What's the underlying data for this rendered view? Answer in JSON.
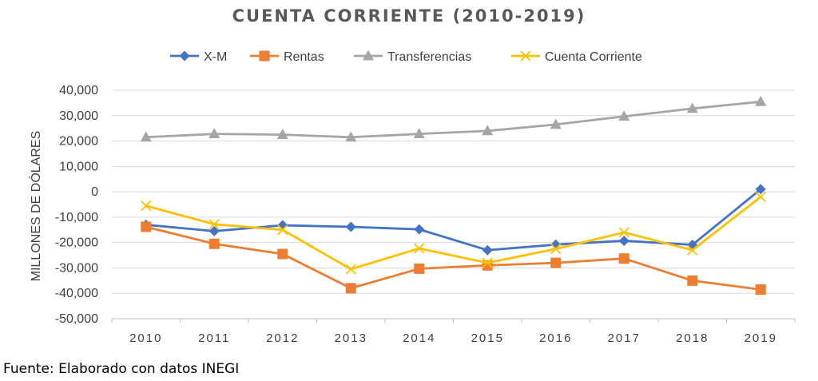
{
  "source_note": "Fuente: Elaborado con datos INEGI",
  "chart_data": {
    "type": "line",
    "title": "CUENTA CORRIENTE (2010-2019)",
    "xlabel": "",
    "ylabel": "MILLONES DE DÓLARES",
    "categories": [
      "2010",
      "2011",
      "2012",
      "2013",
      "2014",
      "2015",
      "2016",
      "2017",
      "2018",
      "2019"
    ],
    "ylim": [
      -50000,
      40000
    ],
    "yticks": [
      40000,
      30000,
      20000,
      10000,
      0,
      -10000,
      -20000,
      -30000,
      -40000,
      -50000
    ],
    "ytick_labels": [
      "40,000",
      "30,000",
      "20,000",
      "10,000",
      "0",
      "-10,000",
      "-20,000",
      "-30,000",
      "-40,000",
      "-50,000"
    ],
    "grid": "horizontal",
    "legend_position": "top",
    "series": [
      {
        "name": "X-M",
        "color": "#4472C4",
        "marker": "diamond",
        "values": [
          -13000,
          -15500,
          -13200,
          -13800,
          -14800,
          -23000,
          -20800,
          -19300,
          -20900,
          1000
        ]
      },
      {
        "name": "Rentas",
        "color": "#ED7D31",
        "marker": "square",
        "values": [
          -13800,
          -20500,
          -24500,
          -38000,
          -30300,
          -29000,
          -28000,
          -26300,
          -35000,
          -38500
        ]
      },
      {
        "name": "Transferencias",
        "color": "#A5A5A5",
        "marker": "triangle",
        "values": [
          21500,
          22800,
          22500,
          21500,
          22800,
          24000,
          26500,
          29700,
          32800,
          35500
        ]
      },
      {
        "name": "Cuenta Corriente",
        "color": "#FFC000",
        "marker": "x",
        "values": [
          -5500,
          -12800,
          -15000,
          -30500,
          -22300,
          -28000,
          -22500,
          -16000,
          -23000,
          -2000
        ]
      }
    ]
  }
}
